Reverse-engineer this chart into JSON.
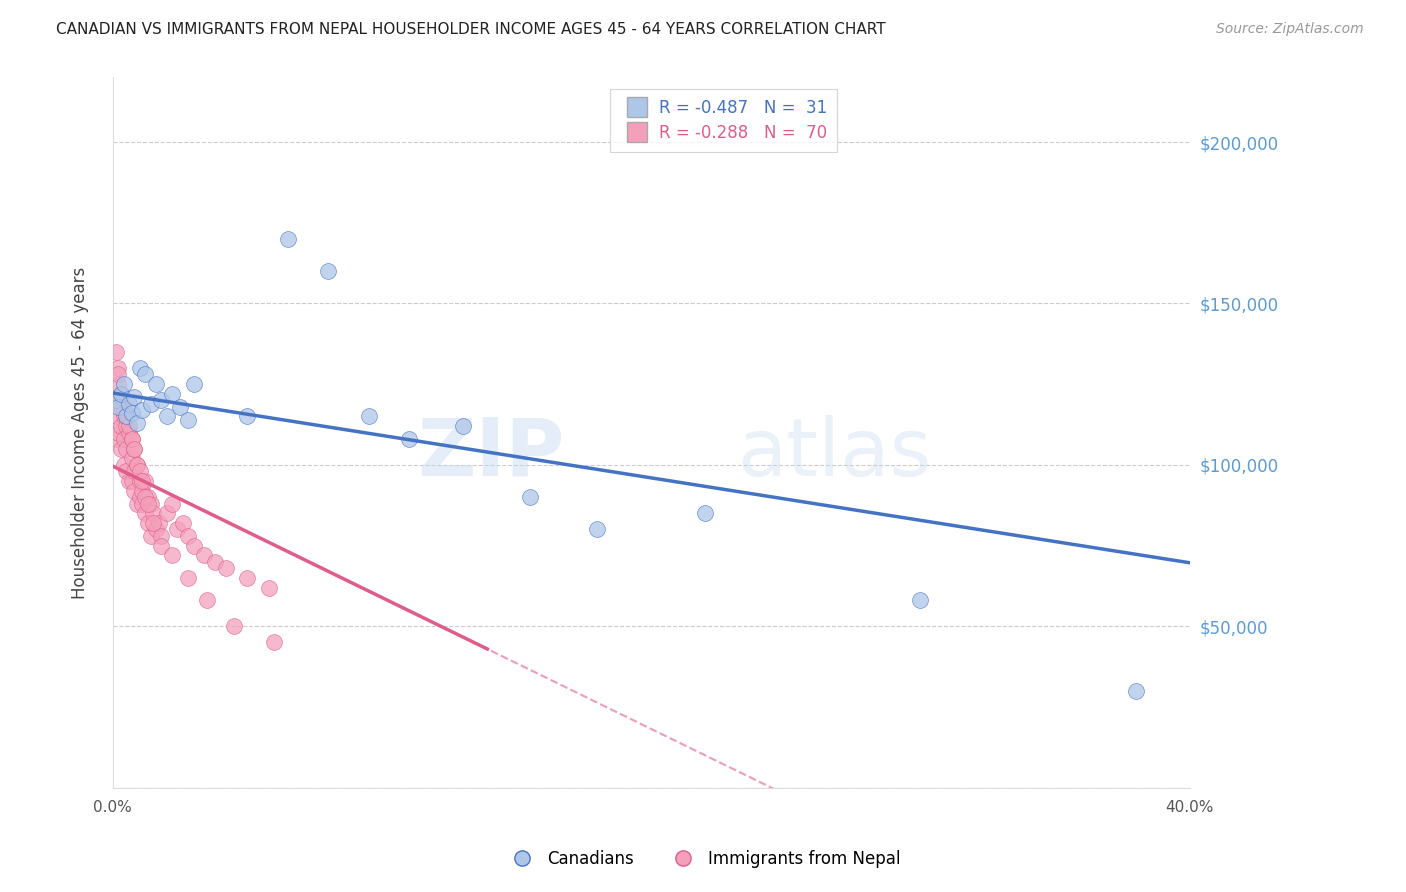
{
  "title": "CANADIAN VS IMMIGRANTS FROM NEPAL HOUSEHOLDER INCOME AGES 45 - 64 YEARS CORRELATION CHART",
  "source": "Source: ZipAtlas.com",
  "ylabel": "Householder Income Ages 45 - 64 years",
  "xlim": [
    0,
    0.4
  ],
  "ylim": [
    0,
    220000
  ],
  "yticks": [
    0,
    50000,
    100000,
    150000,
    200000
  ],
  "xticks": [
    0.0,
    0.05,
    0.1,
    0.15,
    0.2,
    0.25,
    0.3,
    0.35,
    0.4
  ],
  "xtick_labels": [
    "0.0%",
    "",
    "",
    "",
    "",
    "",
    "",
    "",
    "40.0%"
  ],
  "canadians_x": [
    0.001,
    0.002,
    0.003,
    0.004,
    0.005,
    0.006,
    0.007,
    0.008,
    0.009,
    0.01,
    0.011,
    0.012,
    0.014,
    0.016,
    0.018,
    0.02,
    0.022,
    0.025,
    0.028,
    0.03,
    0.05,
    0.065,
    0.08,
    0.095,
    0.11,
    0.13,
    0.155,
    0.18,
    0.22,
    0.3,
    0.38
  ],
  "canadians_y": [
    120000,
    118000,
    122000,
    125000,
    115000,
    119000,
    116000,
    121000,
    113000,
    130000,
    117000,
    128000,
    119000,
    125000,
    120000,
    115000,
    122000,
    118000,
    114000,
    125000,
    115000,
    170000,
    160000,
    115000,
    108000,
    112000,
    90000,
    80000,
    85000,
    58000,
    30000
  ],
  "nepal_x": [
    0.001,
    0.001,
    0.001,
    0.002,
    0.002,
    0.002,
    0.003,
    0.003,
    0.003,
    0.004,
    0.004,
    0.004,
    0.005,
    0.005,
    0.005,
    0.006,
    0.006,
    0.007,
    0.007,
    0.007,
    0.008,
    0.008,
    0.008,
    0.009,
    0.009,
    0.01,
    0.01,
    0.011,
    0.011,
    0.012,
    0.012,
    0.013,
    0.013,
    0.014,
    0.014,
    0.015,
    0.016,
    0.017,
    0.018,
    0.02,
    0.022,
    0.024,
    0.026,
    0.028,
    0.03,
    0.034,
    0.038,
    0.042,
    0.05,
    0.058,
    0.001,
    0.002,
    0.003,
    0.004,
    0.005,
    0.006,
    0.007,
    0.008,
    0.009,
    0.01,
    0.011,
    0.012,
    0.013,
    0.015,
    0.018,
    0.022,
    0.028,
    0.035,
    0.045,
    0.06
  ],
  "nepal_y": [
    115000,
    108000,
    120000,
    125000,
    130000,
    110000,
    118000,
    105000,
    112000,
    108000,
    115000,
    100000,
    112000,
    105000,
    98000,
    110000,
    95000,
    108000,
    102000,
    95000,
    105000,
    98000,
    92000,
    100000,
    88000,
    95000,
    90000,
    88000,
    92000,
    95000,
    85000,
    90000,
    82000,
    88000,
    78000,
    85000,
    80000,
    82000,
    78000,
    85000,
    88000,
    80000,
    82000,
    78000,
    75000,
    72000,
    70000,
    68000,
    65000,
    62000,
    135000,
    128000,
    122000,
    118000,
    115000,
    112000,
    108000,
    105000,
    100000,
    98000,
    95000,
    90000,
    88000,
    82000,
    75000,
    72000,
    65000,
    58000,
    50000,
    45000
  ],
  "canadian_R": -0.487,
  "canadian_N": 31,
  "nepal_R": -0.288,
  "nepal_N": 70,
  "canadian_line_color": "#4472C4",
  "nepal_line_color": "#E05C8A",
  "canadian_scatter_color": "#AEC6E8",
  "nepal_scatter_color": "#F4A0BB",
  "grid_color": "#CCCCCC",
  "right_axis_color": "#5B9BD5",
  "background_color": "#FFFFFF",
  "watermark_zip": "ZIP",
  "watermark_atlas": "atlas",
  "watermark_color_zip": "#C5D8F0",
  "watermark_color_atlas": "#C5D8F0"
}
